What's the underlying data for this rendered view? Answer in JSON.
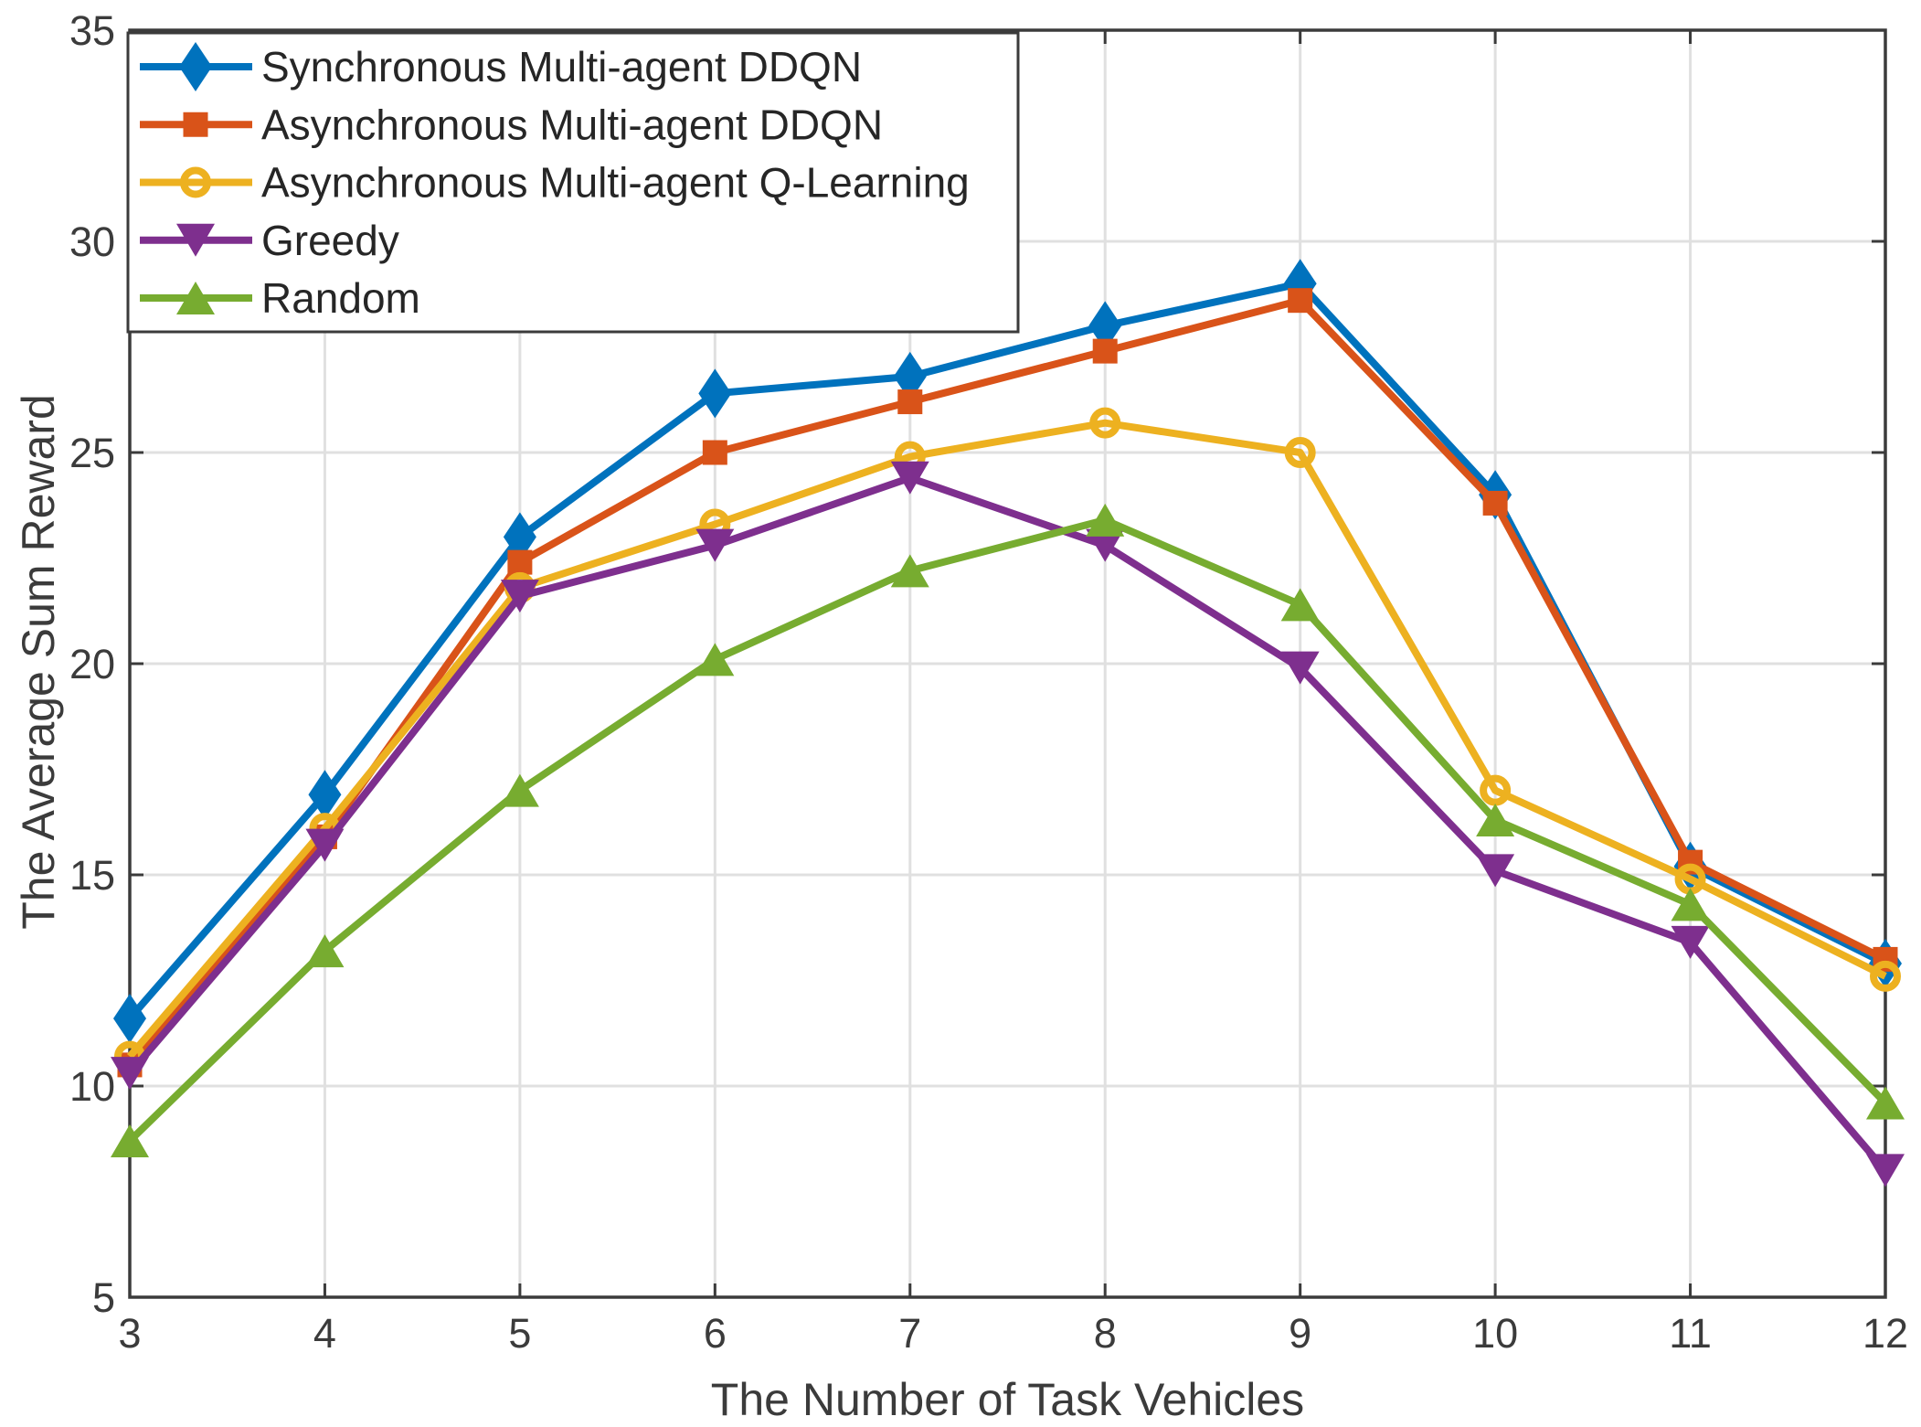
{
  "chart_data": {
    "type": "line",
    "title": "",
    "xlabel": "The Number of Task Vehicles",
    "ylabel": "The Average Sum Reward",
    "x": [
      3,
      4,
      5,
      6,
      7,
      8,
      9,
      10,
      11,
      12
    ],
    "xlim": [
      3,
      12
    ],
    "ylim": [
      5,
      35
    ],
    "xticks": [
      3,
      4,
      5,
      6,
      7,
      8,
      9,
      10,
      11,
      12
    ],
    "yticks": [
      5,
      10,
      15,
      20,
      25,
      30,
      35
    ],
    "grid": true,
    "legend_position": "top-left",
    "series": [
      {
        "name": "Synchronous Multi-agent DDQN",
        "color": "#0072BD",
        "marker": "diamond",
        "values": [
          11.6,
          16.9,
          23.0,
          26.4,
          26.8,
          28.0,
          29.0,
          24.0,
          15.2,
          12.9
        ]
      },
      {
        "name": "Asynchronous Multi-agent DDQN",
        "color": "#D95319",
        "marker": "square",
        "values": [
          10.5,
          15.9,
          22.4,
          25.0,
          26.2,
          27.4,
          28.6,
          23.8,
          15.3,
          13.0
        ]
      },
      {
        "name": "Asynchronous Multi-agent Q-Learning",
        "color": "#EDB120",
        "marker": "circle",
        "values": [
          10.7,
          16.1,
          21.8,
          23.3,
          24.9,
          25.7,
          25.0,
          17.0,
          14.9,
          12.6
        ]
      },
      {
        "name": "Greedy",
        "color": "#7E2F8E",
        "marker": "triangle-down",
        "values": [
          10.3,
          15.7,
          21.6,
          22.8,
          24.4,
          22.8,
          19.9,
          15.1,
          13.4,
          8.0
        ]
      },
      {
        "name": "Random",
        "color": "#77AC30",
        "marker": "triangle-up",
        "values": [
          8.7,
          13.2,
          17.0,
          20.1,
          22.2,
          23.4,
          21.4,
          16.3,
          14.3,
          9.6
        ]
      }
    ],
    "axis_color": "#3b3b3b",
    "grid_color": "#e0e0e0",
    "background_color": "#ffffff"
  }
}
